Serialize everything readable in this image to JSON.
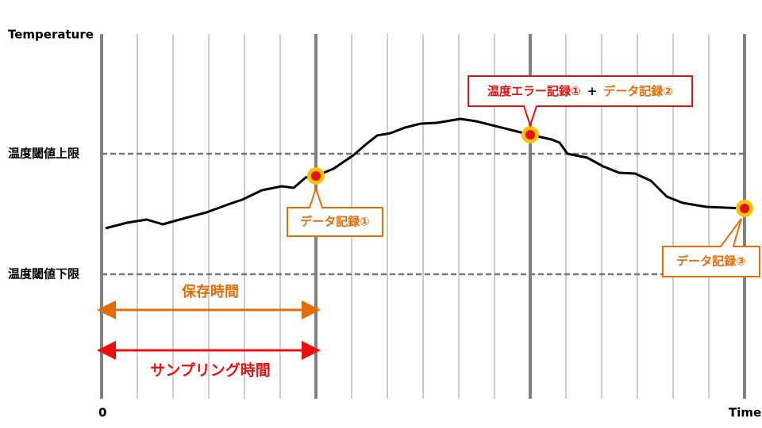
{
  "y_axis_label": "Temperature",
  "x_origin_label": "0",
  "x_axis_label": "Time",
  "upper_limit_label": "温度閾値上限",
  "lower_limit_label": "温度閾値下限",
  "callouts": [
    {
      "parts": [
        "データ記録①"
      ]
    },
    {
      "parts": [
        "温度エラー記録①",
        "+",
        "データ記録②"
      ]
    },
    {
      "parts": [
        "データ記録③"
      ]
    }
  ],
  "storage_time_label": "保存時間",
  "sampling_time_label": "サンプリング時間"
}
